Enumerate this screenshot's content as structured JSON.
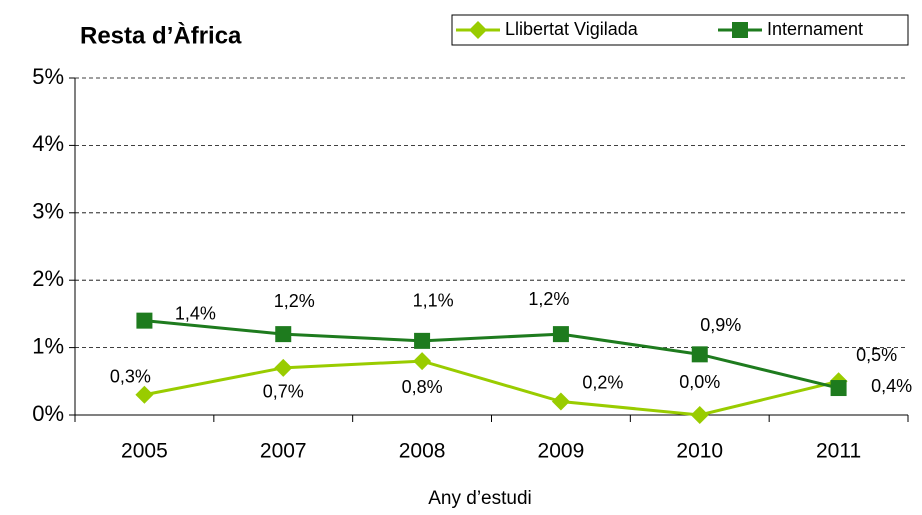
{
  "chart_data": {
    "type": "line",
    "title": "Resta d’Àfrica",
    "x_label": "Any d’estudi",
    "categories": [
      "2005",
      "2007",
      "2008",
      "2009",
      "2010",
      "2011"
    ],
    "series": [
      {
        "name": "Llibertat Vigilada",
        "color": "#99cc00",
        "marker": "diamond",
        "values": [
          0.3,
          0.7,
          0.8,
          0.2,
          0.0,
          0.5
        ],
        "value_labels": [
          "0,3%",
          "0,7%",
          "0,8%",
          "0,2%",
          "0,0%",
          "0,5%"
        ]
      },
      {
        "name": "Internament",
        "color": "#1e7b1e",
        "marker": "square",
        "values": [
          1.4,
          1.2,
          1.1,
          1.2,
          0.9,
          0.4
        ],
        "value_labels": [
          "1,4%",
          "1,2%",
          "1,1%",
          "1,2%",
          "0,9%",
          "0,4%"
        ]
      }
    ],
    "ylim": [
      0,
      5
    ],
    "yticks": [
      {
        "value": 0,
        "label": "0%"
      },
      {
        "value": 1,
        "label": "1%"
      },
      {
        "value": 2,
        "label": "2%"
      },
      {
        "value": 3,
        "label": "3%"
      },
      {
        "value": 4,
        "label": "4%"
      },
      {
        "value": 5,
        "label": "5%"
      }
    ],
    "grid": true,
    "legend": "top-right"
  }
}
